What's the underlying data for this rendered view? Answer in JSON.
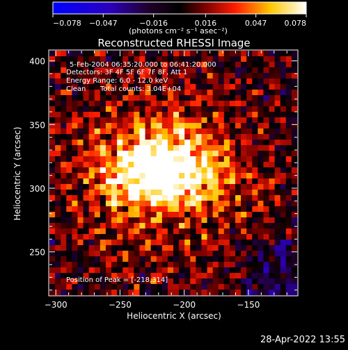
{
  "colorbar": {
    "ticks": [
      "-0.078",
      "-0.047",
      "-0.016",
      "0.016",
      "0.047",
      "0.078"
    ],
    "tick_values": [
      -0.078,
      -0.047,
      -0.016,
      0.016,
      0.047,
      0.078
    ],
    "unit_label": "(photons cm⁻² s⁻¹ asec⁻²)"
  },
  "plot": {
    "title": "Reconstructed RHESSI Image",
    "time_range": "5-Feb-2004 06:35:20.000 to 06:41:20.000",
    "detectors": "Detectors: 3F 4F 5F 6F 7F 8F, Att 1",
    "energy_range": "Energy Range: 6.0 - 12.0 keV",
    "clean_label": "Clean",
    "total_counts": "Total counts: 3.04E+04",
    "peak_position": "Position of Peak = [-218,314]",
    "xlabel": "Heliocentric X (arcsec)",
    "ylabel": "Heliocentric Y (arcsec)",
    "xticks": [
      "-300",
      "-250",
      "-200",
      "-150"
    ],
    "yticks": [
      "250",
      "300",
      "350",
      "400"
    ]
  },
  "chart_data": {
    "type": "heatmap",
    "title": "Reconstructed RHESSI Image",
    "xlabel": "Heliocentric X (arcsec)",
    "ylabel": "Heliocentric Y (arcsec)",
    "xlim": [
      -305,
      -112
    ],
    "ylim": [
      216,
      408
    ],
    "zlim": [
      -0.078,
      0.078
    ],
    "peak": [
      -218,
      314
    ],
    "color_scale": [
      "#0000ff",
      "#000000",
      "#ff0000",
      "#ffff00",
      "#ffffff"
    ]
  },
  "footer": {
    "date": "28-Apr-2022 13:55"
  }
}
